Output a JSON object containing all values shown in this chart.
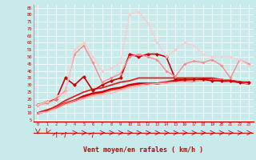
{
  "background_color": "#c8eaea",
  "grid_color": "#ffffff",
  "xlabel": "Vent moyen/en rafales ( km/h )",
  "xlabel_color": "#cc0000",
  "ytick_vals": [
    5,
    10,
    15,
    20,
    25,
    30,
    35,
    40,
    45,
    50,
    55,
    60,
    65,
    70,
    75,
    80,
    85
  ],
  "xtick_vals": [
    0,
    1,
    2,
    3,
    4,
    5,
    6,
    7,
    8,
    9,
    10,
    11,
    12,
    13,
    14,
    15,
    16,
    17,
    18,
    19,
    20,
    21,
    22,
    23
  ],
  "ylim": [
    4,
    87
  ],
  "xlim": [
    -0.5,
    23.5
  ],
  "lines": [
    {
      "x": [
        0,
        1,
        2,
        3,
        4,
        5,
        6,
        7,
        8,
        9,
        10,
        11,
        12,
        13,
        14,
        15,
        16,
        17,
        18,
        19,
        20,
        21,
        22,
        23
      ],
      "y": [
        10,
        12,
        14,
        17,
        19,
        22,
        24,
        25,
        27,
        28,
        30,
        31,
        31,
        31,
        32,
        33,
        33,
        33,
        34,
        34,
        33,
        33,
        32,
        31
      ],
      "color": "#cc0000",
      "lw": 2.0,
      "marker": null
    },
    {
      "x": [
        0,
        1,
        2,
        3,
        4,
        5,
        6,
        7,
        8,
        9,
        10,
        11,
        12,
        13,
        14,
        15,
        16,
        17,
        18,
        19,
        20,
        21,
        22,
        23
      ],
      "y": [
        10,
        12,
        15,
        19,
        22,
        25,
        27,
        28,
        30,
        32,
        33,
        35,
        35,
        35,
        35,
        35,
        35,
        35,
        35,
        35,
        34,
        33,
        32,
        32
      ],
      "color": "#dd2222",
      "lw": 1.3,
      "marker": null
    },
    {
      "x": [
        0,
        1,
        2,
        3,
        4,
        5,
        6,
        7,
        8,
        9,
        10,
        11,
        12,
        13,
        14,
        15,
        16,
        17,
        18,
        19,
        20,
        21,
        22,
        23
      ],
      "y": [
        10,
        11,
        14,
        17,
        19,
        21,
        23,
        24,
        26,
        27,
        29,
        30,
        31,
        31,
        32,
        32,
        33,
        33,
        33,
        34,
        34,
        33,
        32,
        31
      ],
      "color": "#ff7777",
      "lw": 1.0,
      "marker": null
    },
    {
      "x": [
        0,
        1,
        2,
        3,
        4,
        5,
        6,
        7,
        8,
        9,
        10,
        11,
        12,
        13,
        14,
        15,
        16,
        17,
        18,
        19,
        20,
        21,
        22,
        23
      ],
      "y": [
        10,
        11,
        13,
        16,
        18,
        20,
        22,
        23,
        24,
        26,
        28,
        29,
        30,
        31,
        31,
        32,
        32,
        33,
        33,
        33,
        33,
        33,
        32,
        31
      ],
      "color": "#ffbbbb",
      "lw": 1.0,
      "marker": null
    },
    {
      "x": [
        0,
        1,
        2,
        3,
        4,
        5,
        6,
        7,
        8,
        9,
        10,
        11,
        12,
        13,
        14,
        15,
        16,
        17,
        18,
        19,
        20,
        21,
        22,
        23
      ],
      "y": [
        16,
        18,
        20,
        35,
        30,
        36,
        26,
        30,
        33,
        35,
        52,
        50,
        52,
        52,
        50,
        34,
        34,
        34,
        34,
        33,
        33,
        33,
        32,
        32
      ],
      "color": "#cc0000",
      "lw": 1.2,
      "marker": "D",
      "ms": 2.5
    },
    {
      "x": [
        0,
        1,
        2,
        3,
        4,
        5,
        6,
        7,
        8,
        9,
        10,
        11,
        12,
        13,
        14,
        15,
        16,
        17,
        18,
        19,
        20,
        21,
        22,
        23
      ],
      "y": [
        16,
        17,
        20,
        26,
        52,
        58,
        46,
        32,
        35,
        38,
        50,
        52,
        50,
        48,
        40,
        36,
        45,
        47,
        46,
        48,
        44,
        35,
        48,
        45
      ],
      "color": "#ff8888",
      "lw": 1.0,
      "marker": "D",
      "ms": 2.0
    },
    {
      "x": [
        0,
        1,
        2,
        3,
        4,
        5,
        6,
        7,
        8,
        9,
        10,
        11,
        12,
        13,
        14,
        15,
        16,
        17,
        18,
        19,
        20,
        21,
        22,
        23
      ],
      "y": [
        16,
        18,
        22,
        24,
        55,
        60,
        50,
        40,
        42,
        46,
        80,
        82,
        74,
        60,
        50,
        55,
        60,
        58,
        52,
        50,
        50,
        50,
        48,
        44
      ],
      "color": "#ffcccc",
      "lw": 1.0,
      "marker": "D",
      "ms": 2.0
    }
  ],
  "arrow_directions": [
    270,
    240,
    60,
    45,
    0,
    0,
    45,
    0,
    0,
    0,
    0,
    0,
    0,
    0,
    0,
    0,
    0,
    0,
    0,
    0,
    0,
    0,
    0,
    0
  ]
}
